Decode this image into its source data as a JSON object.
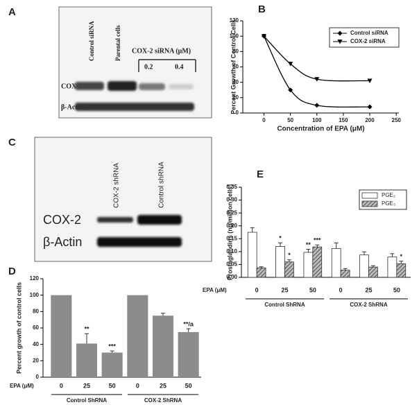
{
  "panel_labels": [
    "A",
    "B",
    "C",
    "D",
    "E"
  ],
  "blot_a": {
    "lanes": [
      "Control siRNA",
      "Parental cells"
    ],
    "treatment": "COX-2 siRNA (μM)",
    "doses": [
      "0.2",
      "0.4"
    ],
    "rows": [
      "COX-2",
      "β-Actin"
    ]
  },
  "blot_c": {
    "lanes": [
      "COX-2 shRNA",
      "Control shRNA"
    ],
    "rows": [
      "COX-2",
      "β-Actin"
    ]
  },
  "chart_data": [
    {
      "type": "line",
      "xlabel": "Concentration of EPA (μM)",
      "ylabel": "Percent Growth of Control Cells",
      "x": [
        0,
        50,
        100,
        200
      ],
      "series": [
        {
          "name": "Control siRNA",
          "color": "#000000",
          "marker": "diamond",
          "values": [
            100,
            30,
            10,
            8
          ]
        },
        {
          "name": "COX-2 siRNA",
          "color": "#000000",
          "marker": "triangle",
          "values": [
            100,
            64,
            44,
            42
          ]
        }
      ],
      "xlim": [
        -40,
        255
      ],
      "xticks": [
        0,
        50,
        100,
        150,
        200,
        250
      ],
      "ylim": [
        0,
        120
      ],
      "yticks": [
        0,
        20,
        40,
        60,
        80,
        100,
        120
      ],
      "legend": "upper right"
    },
    {
      "type": "bar",
      "ylabel": "Percent growth of control cells",
      "category_title": "EPA (μM)",
      "categories": [
        "0",
        "25",
        "50",
        "0",
        "25",
        "50"
      ],
      "groups": [
        "Control ShRNA",
        "COX-2 ShRNA"
      ],
      "values": [
        100,
        41,
        30,
        100,
        75,
        55
      ],
      "errors": [
        null,
        12,
        2,
        null,
        3,
        4
      ],
      "annotations": [
        null,
        "**",
        "***",
        null,
        null,
        "**/a"
      ],
      "color": "#8c8c8c",
      "ylim": [
        0,
        120
      ],
      "yticks": [
        0,
        20,
        40,
        60,
        80,
        100,
        120
      ]
    },
    {
      "type": "bar",
      "ylabel": "Prostaglandins (ng/million cells)",
      "category_title": "EPA (μM)",
      "categories": [
        "0",
        "25",
        "50",
        "0",
        "25",
        "50"
      ],
      "groups": [
        "Control ShRNA",
        "COX-2 ShRNA"
      ],
      "series": [
        {
          "name": "PGE₂",
          "color": "#ffffff",
          "values": [
            0.175,
            0.12,
            0.097,
            0.112,
            0.087,
            0.079
          ],
          "errors": [
            0.018,
            0.014,
            0.012,
            0.022,
            0.012,
            0.013
          ],
          "annotations": [
            null,
            "*",
            "**",
            null,
            null,
            null
          ]
        },
        {
          "name": "PGE₃",
          "color": "#555555",
          "pattern": "hatch",
          "values": [
            0.037,
            0.06,
            0.118,
            0.028,
            0.04,
            0.053
          ],
          "errors": [
            0.004,
            0.008,
            0.008,
            0.006,
            0.005,
            0.01
          ],
          "annotations": [
            null,
            "*",
            "***",
            null,
            null,
            "*"
          ]
        }
      ],
      "ylim": [
        0,
        0.35
      ],
      "yticks": [
        {
          "value": 0,
          "label": "0.00"
        },
        {
          "value": 0.05,
          "label": "0.05"
        },
        {
          "value": 0.1,
          "label": "0.10"
        },
        {
          "value": 0.15,
          "label": "0.15"
        },
        {
          "value": 0.2,
          "label": "0.20"
        },
        {
          "value": 0.25,
          "label": "0.25"
        },
        {
          "value": 0.3,
          "label": "0.30"
        },
        {
          "value": 0.35,
          "label": "0.35"
        }
      ],
      "legend": "upper right"
    }
  ]
}
